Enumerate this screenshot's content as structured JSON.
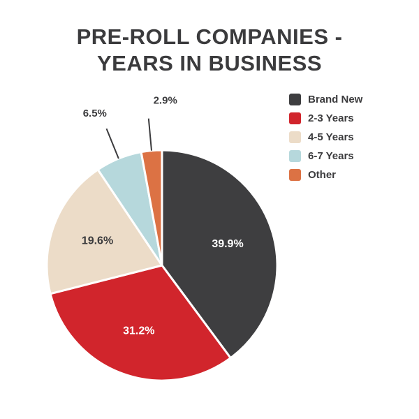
{
  "title": {
    "line1": "PRE-ROLL COMPANIES -",
    "line2": "YEARS IN BUSINESS"
  },
  "colors": {
    "text_dark": "#3b3b3d",
    "background": "#ffffff",
    "leader_line": "#3b3b3d"
  },
  "chart_data": {
    "type": "pie",
    "title": "Pre-Roll Companies - Years in Business",
    "categories": [
      "Brand New",
      "2-3 Years",
      "4-5 Years",
      "6-7 Years",
      "Other"
    ],
    "values": [
      39.9,
      31.2,
      19.6,
      6.5,
      2.9
    ],
    "unit": "%",
    "start_angle_deg": 0,
    "direction": "clockwise",
    "legend_position": "top-right",
    "slices": [
      {
        "label": "Brand New",
        "value": 39.9,
        "display": "39.9%",
        "color": "#3e3e40",
        "label_placement": "inside",
        "label_color": "#ffffff"
      },
      {
        "label": "2-3 Years",
        "value": 31.2,
        "display": "31.2%",
        "color": "#d1252c",
        "label_placement": "inside",
        "label_color": "#ffffff"
      },
      {
        "label": "4-5 Years",
        "value": 19.6,
        "display": "19.6%",
        "color": "#ecdcc8",
        "label_placement": "inside",
        "label_color": "#3b3b3d"
      },
      {
        "label": "6-7 Years",
        "value": 6.5,
        "display": "6.5%",
        "color": "#b6d8dc",
        "label_placement": "outside",
        "label_color": "#3b3b3d"
      },
      {
        "label": "Other",
        "value": 2.9,
        "display": "2.9%",
        "color": "#dc7244",
        "label_placement": "outside",
        "label_color": "#3b3b3d"
      }
    ]
  }
}
